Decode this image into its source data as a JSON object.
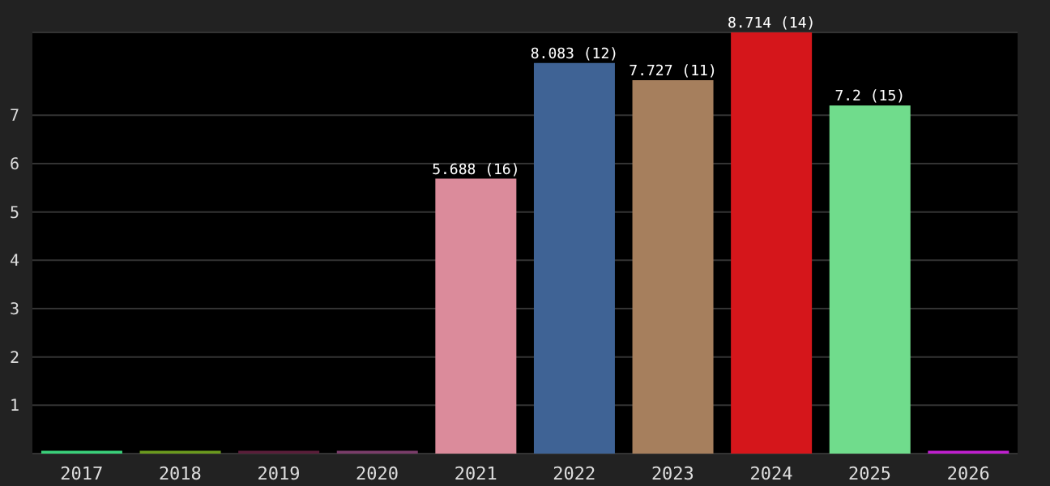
{
  "chart_data": {
    "type": "bar",
    "categories": [
      "2017",
      "2018",
      "2019",
      "2020",
      "2021",
      "2022",
      "2023",
      "2024",
      "2025",
      "2026"
    ],
    "values": [
      0.06,
      0.06,
      0.06,
      0.06,
      5.688,
      8.083,
      7.727,
      8.714,
      7.2,
      0.06
    ],
    "colors": [
      "#3ad07a",
      "#6b9a1e",
      "#5a1e3a",
      "#7a3d6a",
      "#db8b9b",
      "#3f6395",
      "#a67f5d",
      "#d5161b",
      "#70dc8c",
      "#c020d0"
    ],
    "value_labels": [
      null,
      null,
      null,
      null,
      "5.688 (16)",
      "8.083 (12)",
      "7.727 (11)",
      "8.714 (14)",
      "7.2 (15)",
      null
    ],
    "ylim": [
      0,
      8.714
    ],
    "yticks": [
      1,
      2,
      3,
      4,
      5,
      6,
      7
    ],
    "grid": "y"
  }
}
